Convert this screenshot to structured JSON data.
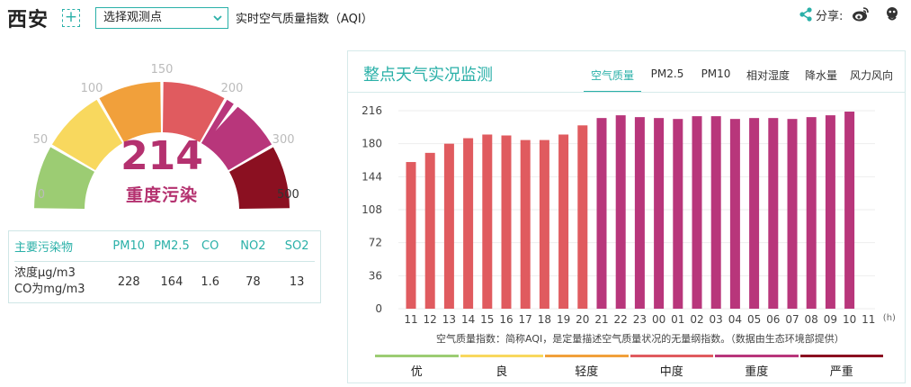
{
  "header": {
    "city": "西安",
    "add_label": "+",
    "station_select": "选择观测点",
    "caption": "实时空气质量指数（AQI）",
    "share_label": "分享:"
  },
  "gauge": {
    "value": "214",
    "value_num": 214,
    "level": "重度污染",
    "ticks": [
      "0",
      "50",
      "100",
      "150",
      "200",
      "300",
      "500"
    ],
    "band_colors": [
      "#9ccc73",
      "#f8d85e",
      "#f1a03b",
      "#e05b5f",
      "#b8367b",
      "#8b1021"
    ]
  },
  "pollutants": {
    "header_label": "主要污染物",
    "names": [
      "PM10",
      "PM2.5",
      "CO",
      "NO2",
      "SO2"
    ],
    "unit_line1": "浓度μg/m3",
    "unit_line2": "CO为mg/m3",
    "values": [
      "228",
      "164",
      "1.6",
      "78",
      "13"
    ]
  },
  "panel": {
    "title": "整点天气实况监测",
    "tabs": [
      "空气质量",
      "PM2.5",
      "PM10",
      "相对湿度",
      "降水量",
      "风力风向"
    ],
    "active_tab": 0,
    "note": "空气质量指数：简称AQI，是定量描述空气质量状况的无量纲指数。（数据由生态环境部提供）",
    "legend": [
      {
        "label": "优",
        "color": "#9ccc73"
      },
      {
        "label": "良",
        "color": "#f8d85e"
      },
      {
        "label": "轻度",
        "color": "#f1a03b"
      },
      {
        "label": "中度",
        "color": "#e05b5f"
      },
      {
        "label": "重度",
        "color": "#b8367b"
      },
      {
        "label": "严重",
        "color": "#8b1021"
      }
    ]
  },
  "chart_data": {
    "type": "bar",
    "categories": [
      "11",
      "12",
      "13",
      "14",
      "15",
      "16",
      "17",
      "18",
      "19",
      "20",
      "21",
      "22",
      "23",
      "00",
      "01",
      "02",
      "03",
      "04",
      "05",
      "06",
      "07",
      "08",
      "09",
      "10",
      "11"
    ],
    "values": [
      160,
      170,
      180,
      186,
      190,
      189,
      184,
      184,
      190,
      200,
      208,
      211,
      209,
      208,
      207,
      210,
      210,
      207,
      208,
      208,
      207,
      209,
      211,
      215,
      null
    ],
    "yticks": [
      "0",
      "36",
      "72",
      "108",
      "144",
      "180",
      "216"
    ],
    "ylim": [
      0,
      216
    ],
    "x_unit": "(h)",
    "grid": true,
    "colors": {
      "moderate": "#e05b5f",
      "heavy": "#b8367b"
    }
  }
}
